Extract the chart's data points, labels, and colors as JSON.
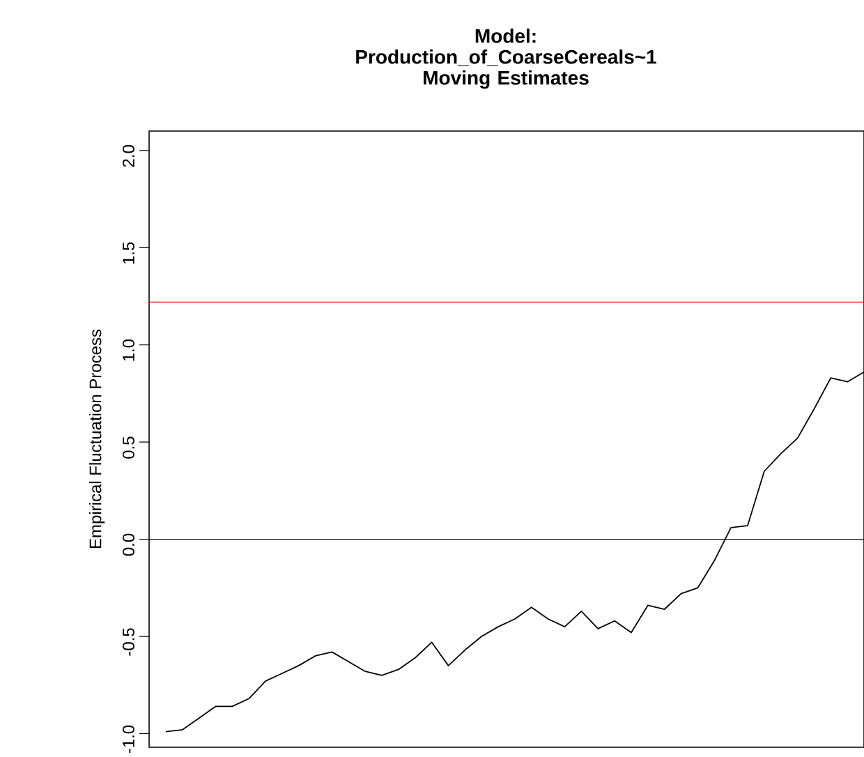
{
  "chart_data": {
    "type": "line",
    "title": "Model: Production_of_CoarseCereals~1",
    "subtitle": "Moving Estimates",
    "ylabel": "Empirical Fluctuation Process",
    "categories": [
      null,
      null,
      null,
      null,
      null,
      null,
      null,
      null,
      null,
      null,
      null,
      null,
      null,
      null,
      null,
      null,
      null,
      null,
      null,
      null,
      null,
      null,
      null,
      null,
      null,
      null,
      null,
      null,
      null,
      null,
      null,
      null,
      null,
      null,
      null,
      null,
      null,
      null,
      null,
      null,
      null,
      null,
      null
    ],
    "values": [
      -0.99,
      -0.98,
      -0.92,
      -0.86,
      -0.86,
      -0.82,
      -0.73,
      -0.69,
      -0.65,
      -0.6,
      -0.58,
      -0.63,
      -0.68,
      -0.7,
      -0.67,
      -0.61,
      -0.53,
      -0.65,
      -0.57,
      -0.5,
      -0.45,
      -0.41,
      -0.35,
      -0.41,
      -0.45,
      -0.37,
      -0.46,
      -0.42,
      -0.48,
      -0.34,
      -0.36,
      -0.28,
      -0.25,
      -0.11,
      0.06,
      0.07,
      0.35,
      0.44,
      0.52,
      0.67,
      0.83,
      0.81,
      0.86
    ],
    "color": "#000000",
    "ylim": [
      -1.07,
      2.1
    ],
    "yticks": [
      {
        "value": -1.0,
        "label": "-1.0"
      },
      {
        "value": -0.5,
        "label": "-0.5"
      },
      {
        "value": 0.0,
        "label": "0.0"
      },
      {
        "value": 0.5,
        "label": "0.5"
      },
      {
        "value": 1.0,
        "label": "1.0"
      },
      {
        "value": 1.5,
        "label": "1.5"
      },
      {
        "value": 2.0,
        "label": "2.0"
      }
    ],
    "tick_labels": "y",
    "ref_lines": [
      {
        "axis": "y",
        "value": 1.22,
        "color": "#ff0000"
      },
      {
        "axis": "y",
        "value": 0,
        "color": "#000000"
      }
    ]
  }
}
